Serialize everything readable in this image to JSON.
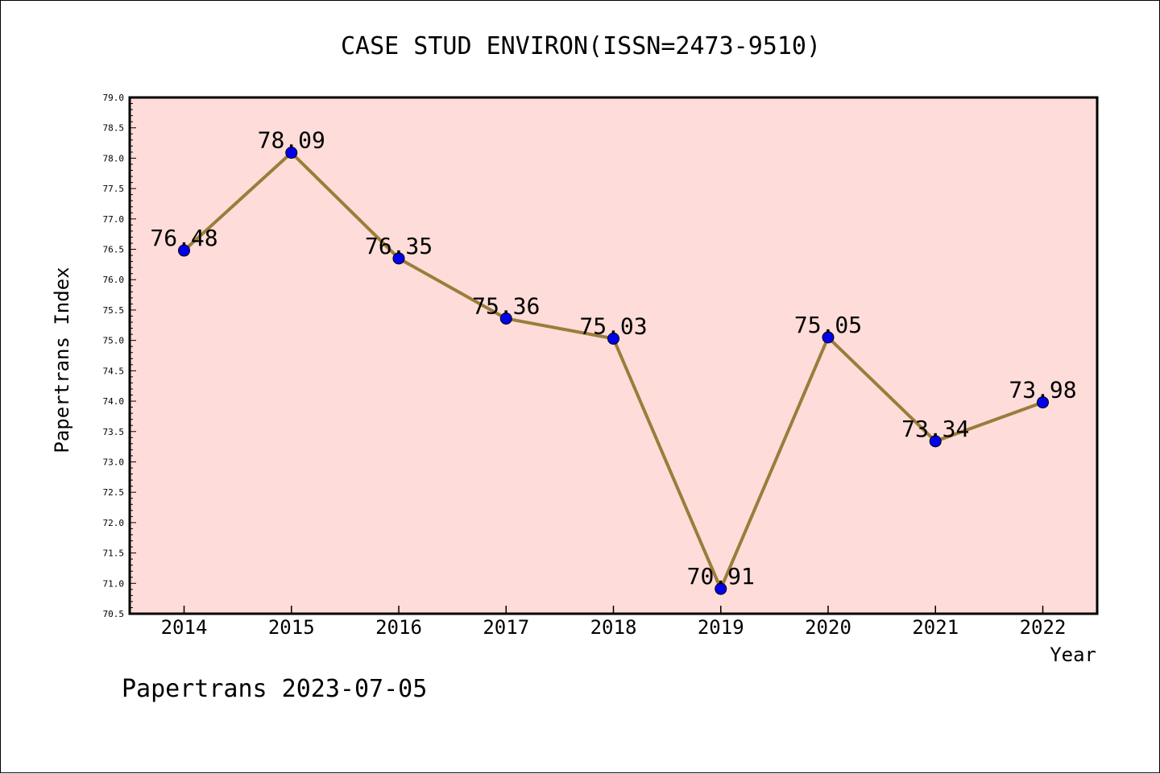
{
  "chart_data": {
    "type": "line",
    "title": "CASE STUD ENVIRON(ISSN=2473-9510)",
    "xlabel": "Year",
    "ylabel": "Papertrans Index",
    "categories": [
      "2014",
      "2015",
      "2016",
      "2017",
      "2018",
      "2019",
      "2020",
      "2021",
      "2022"
    ],
    "values": [
      76.48,
      78.09,
      76.35,
      75.36,
      75.03,
      70.91,
      75.05,
      73.34,
      73.98
    ],
    "data_labels": [
      "76.48",
      "78.09",
      "76.35",
      "75.36",
      "75.03",
      "70.91",
      "75.05",
      "73.34",
      "73.98"
    ],
    "ylim": [
      70.5,
      79.0
    ],
    "yticks": [
      "70.5",
      "71.0",
      "71.5",
      "72.0",
      "72.5",
      "73.0",
      "73.5",
      "74.0",
      "74.5",
      "75.0",
      "75.5",
      "76.0",
      "76.5",
      "77.0",
      "77.5",
      "78.0",
      "78.5",
      "79.0"
    ],
    "grid": false,
    "line_color": "#9a7d3a",
    "marker_color": "#0000ee",
    "plot_background": "#fddcd9"
  },
  "footer": "Papertrans 2023-07-05"
}
